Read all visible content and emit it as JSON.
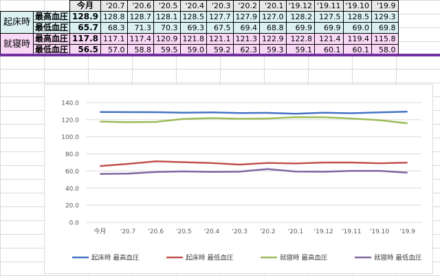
{
  "table": {
    "current_label": "今月",
    "periods": [
      "'20.7",
      "'20.6",
      "'20.5",
      "'20.4",
      "'20.3",
      "'20.2",
      "'20.1",
      "'19.12",
      "'19.11",
      "'19.10",
      "'19.9"
    ],
    "groups": [
      {
        "label": "起床時",
        "rows": [
          {
            "label": "最高血圧",
            "current": "128.9",
            "values": [
              "128.8",
              "128.7",
              "128.1",
              "128.5",
              "127.7",
              "127.9",
              "127.0",
              "128.2",
              "127.5",
              "128.5",
              "129.3"
            ]
          },
          {
            "label": "最低血圧",
            "current": "65.7",
            "values": [
              "68.3",
              "71.3",
              "70.3",
              "69.3",
              "67.5",
              "69.4",
              "68.8",
              "69.9",
              "69.9",
              "69.0",
              "69.8"
            ]
          }
        ]
      },
      {
        "label": "就寝時",
        "rows": [
          {
            "label": "最高血圧",
            "current": "117.8",
            "values": [
              "117.1",
              "117.4",
              "120.9",
              "121.8",
              "121.1",
              "121.3",
              "122.9",
              "122.8",
              "121.4",
              "119.4",
              "115.8"
            ]
          },
          {
            "label": "最低血圧",
            "current": "56.5",
            "values": [
              "57.0",
              "58.8",
              "59.5",
              "59.0",
              "59.2",
              "62.3",
              "59.3",
              "59.1",
              "60.1",
              "60.1",
              "58.0"
            ]
          }
        ]
      }
    ]
  },
  "chart_data": {
    "type": "line",
    "categories": [
      "今月",
      "'20.7",
      "'20.6",
      "'20.5",
      "'20.4",
      "'20.3",
      "'20.2",
      "'20.1",
      "'19.12",
      "'19.11",
      "'19.10",
      "'19.9"
    ],
    "tick_labels": [
      "今月",
      "'20.7",
      "'20.6",
      "'20.5",
      "'20.4",
      "'20.3",
      "'20.2",
      "'20.1",
      "'19.12",
      "'19.11",
      "'19.10",
      "'19.9"
    ],
    "ylim": [
      0,
      140
    ],
    "yticks": [
      "0.0",
      "20.0",
      "40.0",
      "60.0",
      "80.0",
      "100.0",
      "120.0",
      "140.0"
    ],
    "grid": true,
    "legend_position": "bottom",
    "series": [
      {
        "name": "起床時 最高血圧",
        "color": "#4472c4",
        "values": [
          128.9,
          128.8,
          128.7,
          128.1,
          128.5,
          127.7,
          127.9,
          127.0,
          128.2,
          127.5,
          128.5,
          129.3
        ]
      },
      {
        "name": "起床時 最低血圧",
        "color": "#c0504d",
        "values": [
          65.7,
          68.3,
          71.3,
          70.3,
          69.3,
          67.5,
          69.4,
          68.8,
          69.9,
          69.9,
          69.0,
          69.8
        ]
      },
      {
        "name": "就寝時 最高血圧",
        "color": "#9bbb59",
        "values": [
          117.8,
          117.1,
          117.4,
          120.9,
          121.8,
          121.1,
          121.3,
          122.9,
          122.8,
          121.4,
          119.4,
          115.8
        ]
      },
      {
        "name": "就寝時 最低血圧",
        "color": "#8064a2",
        "values": [
          56.5,
          57.0,
          58.8,
          59.5,
          59.0,
          59.2,
          62.3,
          59.3,
          59.1,
          60.1,
          60.1,
          58.0
        ]
      }
    ]
  }
}
